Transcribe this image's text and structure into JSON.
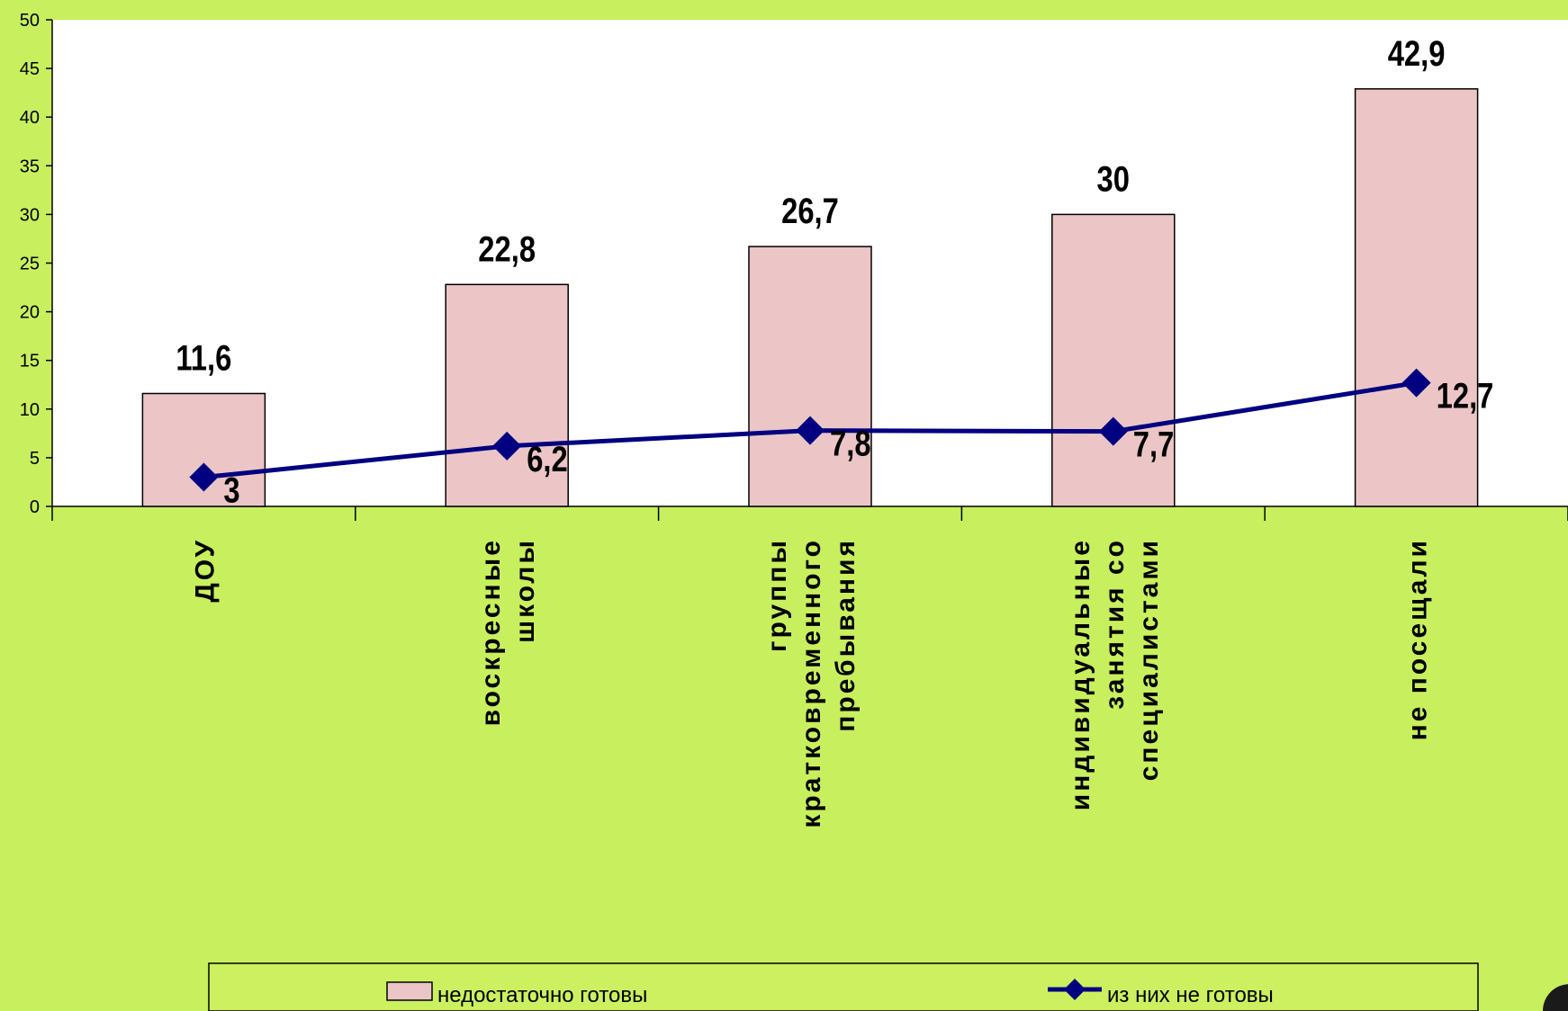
{
  "chart_data": {
    "type": "bar",
    "categories": [
      [
        "ДОУ"
      ],
      [
        "воскресные",
        "школы"
      ],
      [
        "группы",
        "кратковременного",
        "пребывания"
      ],
      [
        "индивидуальные",
        "занятия со",
        "специалистами"
      ],
      [
        "не посещали"
      ]
    ],
    "series": [
      {
        "name": "недостаточно готовы",
        "type": "bar",
        "values": [
          11.6,
          22.8,
          26.7,
          30,
          42.9
        ],
        "labels": [
          "11,6",
          "22,8",
          "26,7",
          "30",
          "42,9"
        ],
        "color": "#ecc6c6"
      },
      {
        "name": "из них не готовы",
        "type": "line",
        "values": [
          3,
          6.2,
          7.8,
          7.7,
          12.7
        ],
        "labels": [
          "3",
          "6,2",
          "7,8",
          "7,7",
          "12,7"
        ],
        "color": "#000080"
      }
    ],
    "ylim": [
      0,
      50
    ],
    "yticks": [
      0,
      5,
      10,
      15,
      20,
      25,
      30,
      35,
      40,
      45,
      50
    ],
    "grid": false,
    "legend": "bottom"
  },
  "colors": {
    "background": "#c8ef5e",
    "plot_area": "#ffffff",
    "bar_fill": "#ecc6c6",
    "bar_stroke": "#000000",
    "line": "#000080"
  }
}
